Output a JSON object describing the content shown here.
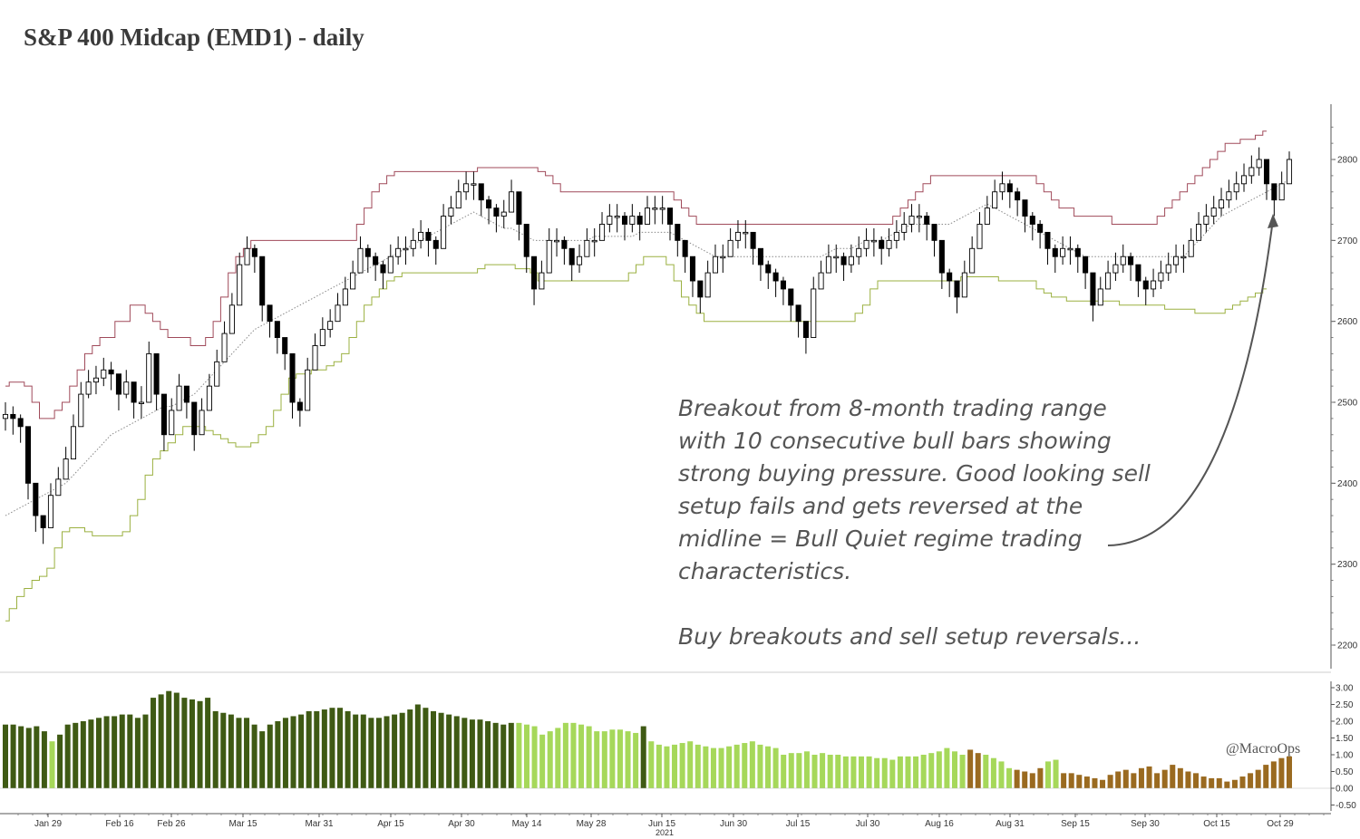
{
  "title": "S&P 400 Midcap (EMD1) - daily",
  "annotation": {
    "lines": [
      "Breakout from 8-month trading range",
      "with 10 consecutive bull bars showing",
      "strong buying pressure. Good looking sell",
      "setup fails and gets reversed at the",
      "midline = Bull Quiet regime trading",
      "characteristics."
    ],
    "footer": "Buy breakouts and sell setup reversals..."
  },
  "watermark": "@MacroOps",
  "year_label": "2021",
  "colors": {
    "upper_band": "#a04a5a",
    "lower_band": "#9bb040",
    "midline": "#888888",
    "candle": "#000000",
    "hist_dark_green": "#3f5a14",
    "hist_light_green": "#a6d85a",
    "hist_brown": "#9a6a20",
    "hist_red": "#e0304a"
  },
  "chart_data": [
    {
      "type": "candlestick",
      "title": "S&P 400 Midcap (EMD1) - daily",
      "x_tick_labels": [
        "Jan 29",
        "Feb 16",
        "Feb 26",
        "Mar 15",
        "Mar 31",
        "Apr 15",
        "Apr 30",
        "May 14",
        "May 28",
        "Jun 15",
        "Jun 30",
        "Jul 15",
        "Jul 30",
        "Aug 16",
        "Aug 31",
        "Sep 15",
        "Sep 30",
        "Oct 15",
        "Oct 29"
      ],
      "y_ticks": [
        2200,
        2300,
        2400,
        2500,
        2600,
        2700,
        2800
      ],
      "ylim": [
        2180,
        2840
      ],
      "closes": [
        2485,
        2480,
        2470,
        2400,
        2360,
        2345,
        2385,
        2405,
        2430,
        2470,
        2510,
        2525,
        2530,
        2540,
        2535,
        2510,
        2525,
        2500,
        2500,
        2560,
        2510,
        2460,
        2490,
        2520,
        2500,
        2460,
        2490,
        2520,
        2550,
        2585,
        2620,
        2670,
        2690,
        2680,
        2620,
        2600,
        2580,
        2560,
        2500,
        2490,
        2540,
        2570,
        2590,
        2600,
        2620,
        2640,
        2660,
        2690,
        2680,
        2670,
        2660,
        2680,
        2690,
        2690,
        2700,
        2710,
        2700,
        2690,
        2730,
        2740,
        2760,
        2770,
        2770,
        2750,
        2740,
        2730,
        2735,
        2760,
        2720,
        2680,
        2640,
        2660,
        2700,
        2700,
        2690,
        2670,
        2680,
        2700,
        2700,
        2720,
        2730,
        2730,
        2720,
        2730,
        2720,
        2740,
        2740,
        2740,
        2720,
        2700,
        2680,
        2650,
        2630,
        2660,
        2680,
        2680,
        2700,
        2710,
        2710,
        2690,
        2670,
        2660,
        2650,
        2640,
        2620,
        2600,
        2580,
        2640,
        2660,
        2680,
        2680,
        2670,
        2680,
        2690,
        2700,
        2700,
        2690,
        2700,
        2710,
        2720,
        2730,
        2730,
        2720,
        2700,
        2660,
        2650,
        2630,
        2660,
        2690,
        2720,
        2740,
        2760,
        2770,
        2760,
        2750,
        2730,
        2720,
        2710,
        2690,
        2680,
        2690,
        2690,
        2680,
        2660,
        2620,
        2640,
        2660,
        2670,
        2680,
        2670,
        2650,
        2640,
        2650,
        2660,
        2670,
        2680,
        2680,
        2700,
        2720,
        2730,
        2740,
        2750,
        2760,
        2770,
        2780,
        2790,
        2800,
        2770,
        2750,
        2770,
        2800
      ],
      "highs": [
        2500,
        2495,
        2485,
        2420,
        2380,
        2360,
        2400,
        2420,
        2445,
        2485,
        2525,
        2540,
        2545,
        2555,
        2550,
        2525,
        2540,
        2515,
        2520,
        2575,
        2525,
        2475,
        2505,
        2535,
        2515,
        2475,
        2505,
        2535,
        2565,
        2600,
        2635,
        2685,
        2705,
        2695,
        2635,
        2615,
        2595,
        2575,
        2515,
        2505,
        2555,
        2585,
        2605,
        2615,
        2635,
        2655,
        2675,
        2705,
        2695,
        2685,
        2675,
        2695,
        2705,
        2705,
        2715,
        2725,
        2715,
        2705,
        2745,
        2755,
        2775,
        2785,
        2785,
        2765,
        2755,
        2745,
        2750,
        2775,
        2735,
        2695,
        2655,
        2675,
        2715,
        2715,
        2705,
        2685,
        2695,
        2715,
        2715,
        2735,
        2745,
        2745,
        2735,
        2745,
        2735,
        2755,
        2755,
        2755,
        2735,
        2715,
        2695,
        2665,
        2645,
        2675,
        2695,
        2695,
        2715,
        2725,
        2725,
        2705,
        2685,
        2675,
        2665,
        2655,
        2635,
        2615,
        2595,
        2655,
        2675,
        2695,
        2695,
        2685,
        2695,
        2705,
        2715,
        2715,
        2705,
        2715,
        2725,
        2735,
        2745,
        2745,
        2735,
        2715,
        2675,
        2665,
        2645,
        2675,
        2705,
        2735,
        2755,
        2775,
        2785,
        2775,
        2765,
        2745,
        2735,
        2725,
        2705,
        2695,
        2705,
        2705,
        2695,
        2675,
        2635,
        2655,
        2675,
        2685,
        2695,
        2685,
        2665,
        2655,
        2665,
        2675,
        2685,
        2695,
        2695,
        2715,
        2735,
        2745,
        2755,
        2765,
        2775,
        2785,
        2795,
        2805,
        2815,
        2785,
        2765,
        2785,
        2810
      ],
      "lows": [
        2465,
        2460,
        2450,
        2380,
        2340,
        2325,
        2365,
        2385,
        2410,
        2450,
        2490,
        2505,
        2510,
        2520,
        2515,
        2490,
        2505,
        2480,
        2480,
        2540,
        2490,
        2440,
        2470,
        2500,
        2480,
        2440,
        2470,
        2500,
        2530,
        2565,
        2600,
        2650,
        2670,
        2660,
        2600,
        2580,
        2560,
        2540,
        2480,
        2470,
        2520,
        2550,
        2570,
        2580,
        2600,
        2620,
        2640,
        2670,
        2660,
        2650,
        2640,
        2660,
        2670,
        2670,
        2680,
        2690,
        2680,
        2670,
        2710,
        2720,
        2740,
        2750,
        2750,
        2730,
        2720,
        2710,
        2715,
        2740,
        2700,
        2660,
        2620,
        2640,
        2680,
        2680,
        2670,
        2650,
        2660,
        2680,
        2680,
        2700,
        2710,
        2710,
        2700,
        2710,
        2700,
        2720,
        2720,
        2720,
        2700,
        2680,
        2660,
        2630,
        2610,
        2640,
        2660,
        2660,
        2680,
        2690,
        2690,
        2670,
        2650,
        2640,
        2630,
        2620,
        2600,
        2580,
        2560,
        2620,
        2640,
        2660,
        2660,
        2650,
        2660,
        2670,
        2680,
        2680,
        2670,
        2680,
        2690,
        2700,
        2710,
        2710,
        2700,
        2680,
        2640,
        2630,
        2610,
        2640,
        2670,
        2700,
        2720,
        2740,
        2750,
        2740,
        2730,
        2710,
        2700,
        2690,
        2670,
        2660,
        2670,
        2670,
        2660,
        2640,
        2600,
        2620,
        2640,
        2650,
        2660,
        2650,
        2630,
        2620,
        2630,
        2640,
        2650,
        2660,
        2660,
        2680,
        2700,
        2710,
        2720,
        2730,
        2740,
        2750,
        2760,
        2770,
        2780,
        2750,
        2730,
        2750,
        2790
      ],
      "upper_band": [
        2520,
        2525,
        2525,
        2520,
        2500,
        2480,
        2480,
        2490,
        2500,
        2520,
        2540,
        2560,
        2570,
        2580,
        2580,
        2600,
        2600,
        2620,
        2620,
        2610,
        2600,
        2590,
        2580,
        2580,
        2580,
        2570,
        2570,
        2580,
        2600,
        2630,
        2660,
        2680,
        2690,
        2700,
        2700,
        2700,
        2700,
        2700,
        2700,
        2700,
        2700,
        2700,
        2700,
        2700,
        2700,
        2700,
        2700,
        2720,
        2740,
        2760,
        2770,
        2780,
        2785,
        2785,
        2785,
        2785,
        2785,
        2785,
        2785,
        2785,
        2785,
        2785,
        2785,
        2790,
        2790,
        2790,
        2790,
        2790,
        2790,
        2790,
        2790,
        2785,
        2780,
        2770,
        2760,
        2760,
        2760,
        2760,
        2760,
        2760,
        2760,
        2760,
        2760,
        2760,
        2760,
        2760,
        2760,
        2760,
        2760,
        2750,
        2740,
        2730,
        2720,
        2720,
        2720,
        2720,
        2720,
        2720,
        2720,
        2720,
        2720,
        2720,
        2720,
        2720,
        2720,
        2720,
        2720,
        2720,
        2720,
        2720,
        2720,
        2720,
        2720,
        2720,
        2720,
        2720,
        2720,
        2720,
        2730,
        2740,
        2750,
        2760,
        2770,
        2780,
        2780,
        2780,
        2780,
        2780,
        2780,
        2780,
        2780,
        2780,
        2780,
        2780,
        2780,
        2780,
        2780,
        2770,
        2760,
        2750,
        2740,
        2740,
        2730,
        2730,
        2730,
        2730,
        2730,
        2720,
        2720,
        2720,
        2720,
        2720,
        2720,
        2730,
        2740,
        2750,
        2760,
        2770,
        2780,
        2790,
        2800,
        2810,
        2820,
        2820,
        2825,
        2825,
        2830,
        2835
      ],
      "midline": [
        2360,
        2365,
        2370,
        2375,
        2380,
        2385,
        2390,
        2395,
        2400,
        2410,
        2420,
        2430,
        2440,
        2450,
        2460,
        2465,
        2470,
        2475,
        2480,
        2485,
        2490,
        2495,
        2495,
        2500,
        2505,
        2510,
        2520,
        2530,
        2540,
        2550,
        2560,
        2570,
        2580,
        2590,
        2595,
        2600,
        2605,
        2610,
        2615,
        2620,
        2625,
        2630,
        2635,
        2640,
        2645,
        2650,
        2655,
        2660,
        2665,
        2670,
        2675,
        2680,
        2685,
        2690,
        2695,
        2700,
        2705,
        2710,
        2715,
        2720,
        2725,
        2730,
        2735,
        2730,
        2725,
        2720,
        2715,
        2715,
        2710,
        2705,
        2700,
        2700,
        2700,
        2700,
        2700,
        2700,
        2700,
        2700,
        2705,
        2705,
        2705,
        2705,
        2705,
        2705,
        2710,
        2710,
        2710,
        2710,
        2710,
        2705,
        2700,
        2695,
        2690,
        2685,
        2680,
        2680,
        2680,
        2680,
        2680,
        2680,
        2680,
        2680,
        2680,
        2680,
        2680,
        2680,
        2680,
        2680,
        2680,
        2685,
        2690,
        2690,
        2690,
        2695,
        2700,
        2700,
        2700,
        2705,
        2710,
        2715,
        2720,
        2720,
        2720,
        2720,
        2720,
        2720,
        2725,
        2730,
        2735,
        2740,
        2745,
        2740,
        2735,
        2730,
        2725,
        2720,
        2715,
        2710,
        2705,
        2700,
        2695,
        2690,
        2685,
        2680,
        2680,
        2680,
        2680,
        2680,
        2680,
        2680,
        2680,
        2680,
        2680,
        2680,
        2680,
        2680,
        2680,
        2690,
        2700,
        2710,
        2720,
        2730,
        2735,
        2740,
        2745,
        2750,
        2755,
        2760,
        2765,
        2770,
        2775
      ],
      "lower_band": [
        2230,
        2245,
        2260,
        2270,
        2280,
        2285,
        2295,
        2320,
        2340,
        2345,
        2345,
        2340,
        2335,
        2335,
        2335,
        2335,
        2340,
        2360,
        2380,
        2410,
        2430,
        2440,
        2450,
        2460,
        2470,
        2470,
        2470,
        2465,
        2460,
        2455,
        2450,
        2445,
        2445,
        2450,
        2460,
        2470,
        2490,
        2510,
        2530,
        2535,
        2535,
        2540,
        2540,
        2545,
        2550,
        2560,
        2580,
        2600,
        2620,
        2630,
        2640,
        2650,
        2655,
        2660,
        2660,
        2660,
        2660,
        2660,
        2660,
        2660,
        2660,
        2660,
        2660,
        2665,
        2670,
        2670,
        2670,
        2670,
        2665,
        2665,
        2660,
        2650,
        2650,
        2650,
        2650,
        2650,
        2650,
        2650,
        2650,
        2650,
        2650,
        2650,
        2650,
        2660,
        2670,
        2680,
        2680,
        2680,
        2670,
        2650,
        2630,
        2620,
        2610,
        2600,
        2600,
        2600,
        2600,
        2600,
        2600,
        2600,
        2600,
        2600,
        2600,
        2600,
        2600,
        2600,
        2600,
        2600,
        2600,
        2600,
        2600,
        2600,
        2600,
        2610,
        2620,
        2640,
        2650,
        2650,
        2650,
        2650,
        2650,
        2650,
        2650,
        2650,
        2650,
        2650,
        2650,
        2655,
        2655,
        2655,
        2655,
        2655,
        2650,
        2650,
        2650,
        2650,
        2650,
        2640,
        2635,
        2630,
        2630,
        2625,
        2625,
        2625,
        2625,
        2625,
        2625,
        2625,
        2620,
        2620,
        2620,
        2620,
        2620,
        2620,
        2615,
        2615,
        2615,
        2615,
        2610,
        2610,
        2610,
        2610,
        2615,
        2620,
        2625,
        2630,
        2635,
        2640
      ]
    },
    {
      "type": "bar",
      "y_ticks": [
        -0.5,
        0,
        0.5,
        1.0,
        1.5,
        2.0,
        2.5,
        3.0
      ],
      "y_tick_labels": [
        "-0.50",
        "0.00",
        "0.50",
        "1.00",
        "1.50",
        "2.00",
        "2.50",
        "3.00"
      ],
      "ylim": [
        -0.75,
        3.15
      ],
      "values": [
        1.9,
        1.9,
        1.85,
        1.8,
        1.85,
        1.7,
        1.4,
        1.6,
        1.9,
        1.95,
        2.0,
        2.05,
        2.1,
        2.15,
        2.15,
        2.2,
        2.2,
        2.1,
        2.2,
        2.7,
        2.8,
        2.9,
        2.85,
        2.7,
        2.65,
        2.6,
        2.7,
        2.3,
        2.25,
        2.2,
        2.1,
        2.1,
        1.9,
        1.7,
        1.9,
        2.0,
        2.1,
        2.15,
        2.2,
        2.3,
        2.3,
        2.35,
        2.4,
        2.4,
        2.3,
        2.2,
        2.2,
        2.1,
        2.1,
        2.15,
        2.2,
        2.25,
        2.35,
        2.5,
        2.4,
        2.3,
        2.25,
        2.2,
        2.15,
        2.1,
        2.05,
        2.05,
        2.0,
        1.95,
        1.9,
        1.95,
        1.95,
        1.9,
        1.85,
        1.6,
        1.7,
        1.8,
        1.95,
        1.95,
        1.9,
        1.85,
        1.7,
        1.7,
        1.75,
        1.75,
        1.7,
        1.65,
        1.85,
        1.4,
        1.3,
        1.25,
        1.3,
        1.35,
        1.4,
        1.3,
        1.25,
        1.2,
        1.2,
        1.25,
        1.3,
        1.35,
        1.4,
        1.3,
        1.25,
        1.2,
        1.0,
        1.05,
        1.05,
        1.1,
        1.0,
        1.05,
        1.0,
        1.0,
        0.95,
        0.95,
        0.95,
        0.95,
        0.9,
        0.9,
        0.85,
        0.95,
        0.95,
        0.95,
        1.0,
        1.05,
        1.1,
        1.2,
        1.1,
        1.0,
        1.15,
        1.05,
        1.0,
        0.9,
        0.8,
        0.6,
        0.55,
        0.5,
        0.45,
        0.6,
        0.8,
        0.85,
        0.45,
        0.45,
        0.4,
        0.35,
        0.3,
        0.25,
        0.4,
        0.5,
        0.55,
        0.45,
        0.6,
        0.65,
        0.45,
        0.55,
        0.7,
        0.6,
        0.5,
        0.45,
        0.35,
        0.3,
        0.3,
        0.2,
        0.25,
        0.35,
        0.45,
        0.55,
        0.7,
        0.8,
        0.9,
        0.95
      ]
    }
  ]
}
